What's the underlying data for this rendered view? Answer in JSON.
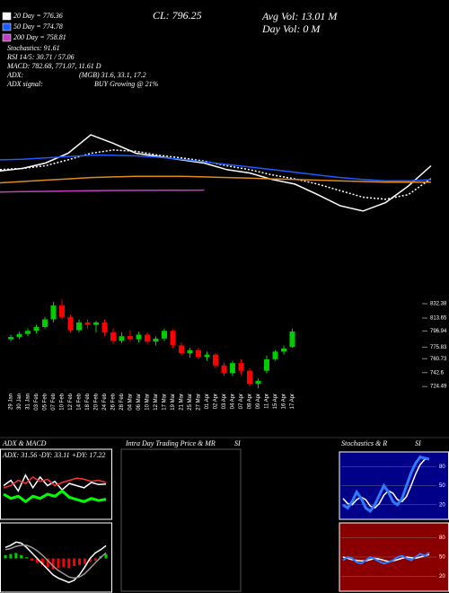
{
  "annotations": [
    "Stochastics: 91.61",
    "RSI 14/5: 30.71 / 57.06",
    "MACD: 782.68, 771.07, 11.61 D",
    "ADX:",
    "ADX signal:",
    "(MGB) 31.6, 33.1, 17.2",
    "BUY Growing @ 21%"
  ],
  "close_label": "CL: 796.25",
  "avg_volume": "Avg Vol: 13.01 M",
  "day_volume": "Day Vol: 0 M",
  "intraday": {
    "title": "Intra Day Trading Price & MR",
    "subtitle": "SI"
  },
  "chart_data": [
    {
      "type": "line",
      "ylim": [
        720,
        850
      ],
      "series": [
        {
          "color": "#ffffff",
          "values": [
            788,
            792,
            800,
            815,
            843,
            830,
            815,
            810,
            805,
            800,
            790,
            785,
            775,
            768,
            752,
            735,
            727,
            740,
            765,
            796
          ]
        },
        {
          "name": "20 Day = 776.36",
          "color": "#ffffff",
          "style": "dotted",
          "values": [
            790,
            792,
            796,
            805,
            815,
            820,
            818,
            812,
            808,
            803,
            796,
            790,
            782,
            776,
            768,
            758,
            748,
            745,
            752,
            776.36
          ]
        },
        {
          "name": "50 Day = 774.78",
          "color": "#1e5bff",
          "values": [
            805,
            806,
            808,
            810,
            812,
            812,
            811,
            809,
            806,
            802,
            798,
            794,
            790,
            786,
            782,
            778,
            775,
            773,
            773,
            774.78
          ]
        },
        {
          "color": "#e08a1e",
          "values": [
            770,
            772,
            774,
            776,
            778,
            779,
            780,
            780,
            780,
            779,
            778,
            777,
            776,
            775,
            774,
            773,
            772,
            771,
            771,
            771
          ]
        },
        {
          "name": "200 Day = 758.81",
          "color": "#c040c0",
          "values": [
            756,
            756.5,
            757,
            757.5,
            758,
            758.3,
            758.5,
            758.6,
            758.7,
            758.81,
            null,
            null,
            null,
            null,
            null,
            null,
            null,
            null,
            null,
            null
          ]
        }
      ]
    },
    {
      "type": "candlestick",
      "ylim": [
        720,
        850
      ],
      "yticks": [
        832.38,
        813.65,
        796.94,
        775.83,
        760.73,
        742.6,
        724.49
      ],
      "up_color": "#00cc00",
      "down_color": "#ff0000",
      "categories": [
        "29 Jan",
        "30 Jan",
        "31 Jan",
        "03 Feb",
        "05 Feb",
        "07 Feb",
        "10 Feb",
        "12 Feb",
        "14 Feb",
        "18 Feb",
        "20 Feb",
        "24 Feb",
        "26 Feb",
        "28 Feb",
        "04 Mar",
        "06 Mar",
        "10 Mar",
        "12 Mar",
        "17 Mar",
        "19 Mar",
        "21 Mar",
        "25 Mar",
        "27 Mar",
        "01 Apr",
        "02 Apr",
        "03 Apr",
        "04 Apr",
        "07 Apr",
        "08 Apr",
        "09 Apr",
        "11 Apr",
        "15 Apr",
        "16 Apr",
        "17 Apr"
      ],
      "open": [
        786,
        789,
        793,
        797,
        802,
        812,
        830,
        815,
        798,
        808,
        805,
        808,
        795,
        784,
        790,
        786,
        792,
        783,
        787,
        797,
        778,
        768,
        772,
        763,
        766,
        752,
        742,
        755,
        745,
        728,
        745,
        760,
        770,
        776
      ],
      "high": [
        792,
        796,
        800,
        805,
        815,
        835,
        838,
        818,
        812,
        812,
        810,
        812,
        800,
        795,
        798,
        796,
        795,
        790,
        800,
        799,
        782,
        775,
        775,
        770,
        768,
        756,
        758,
        760,
        748,
        735,
        765,
        772,
        778,
        800
      ],
      "low": [
        783,
        786,
        790,
        794,
        800,
        808,
        812,
        795,
        795,
        800,
        795,
        790,
        780,
        781,
        783,
        782,
        780,
        778,
        784,
        775,
        765,
        762,
        760,
        758,
        748,
        738,
        738,
        740,
        725,
        722,
        742,
        758,
        766,
        775
      ],
      "close": [
        789,
        793,
        797,
        802,
        812,
        830,
        815,
        798,
        808,
        805,
        808,
        795,
        784,
        790,
        786,
        792,
        783,
        787,
        797,
        778,
        768,
        772,
        763,
        766,
        752,
        742,
        755,
        745,
        728,
        732,
        760,
        770,
        774,
        796.25
      ]
    },
    {
      "type": "line",
      "title": "ADX & MACD",
      "subtitle": "ADX: 31.56  -DY: 33.11  +DY: 17.22",
      "ylim": [
        0,
        60
      ],
      "series": [
        {
          "color": "#ffffff",
          "values": [
            30,
            35,
            25,
            40,
            28,
            38,
            30,
            34,
            26,
            32,
            30,
            28,
            33,
            31,
            31.56
          ]
        },
        {
          "color": "#ff3030",
          "values": [
            28,
            30,
            35,
            32,
            38,
            34,
            36,
            30,
            33,
            35,
            37,
            36,
            34,
            35,
            33.11
          ]
        },
        {
          "color": "#00ff00",
          "width": 3,
          "values": [
            22,
            18,
            20,
            15,
            20,
            18,
            22,
            20,
            25,
            19,
            17,
            15,
            18,
            16,
            17.22
          ]
        }
      ]
    },
    {
      "type": "bar",
      "ylim": [
        -30,
        30
      ],
      "up_color": "#00cc00",
      "down_color": "#ff0000",
      "values": [
        3,
        4,
        5,
        3,
        1,
        -2,
        -4,
        -6,
        -8,
        -10,
        -9,
        -8,
        -9,
        -7,
        -6,
        -5,
        -3,
        -2,
        2,
        4
      ],
      "series": [
        {
          "color": "#ffffff",
          "values": [
            10,
            12,
            15,
            14,
            10,
            5,
            0,
            -5,
            -10,
            -15,
            -18,
            -20,
            -22,
            -20,
            -15,
            -8,
            0,
            5,
            8,
            11.61
          ]
        },
        {
          "color": "#999999",
          "values": [
            8,
            9,
            11,
            12,
            12,
            10,
            7,
            3,
            -2,
            -7,
            -11,
            -14,
            -17,
            -18,
            -17,
            -14,
            -9,
            -4,
            1,
            5
          ]
        }
      ]
    },
    {
      "type": "line",
      "title": "Stochastics & R",
      "subtitle": "SI",
      "ylim": [
        0,
        100
      ],
      "yticks": [
        20,
        50,
        80
      ],
      "background": "#000088",
      "series": [
        {
          "color": "#ffffff",
          "values": [
            30,
            22,
            20,
            28,
            32,
            28,
            18,
            15,
            22,
            35,
            42,
            38,
            28,
            25,
            33,
            50,
            68,
            83,
            91,
            92
          ]
        },
        {
          "color": "#2f7bff",
          "width": 3,
          "values": [
            20,
            15,
            25,
            40,
            30,
            15,
            10,
            20,
            35,
            50,
            40,
            25,
            20,
            30,
            50,
            70,
            85,
            95,
            93,
            91.61
          ]
        }
      ]
    },
    {
      "type": "line",
      "ylim": [
        0,
        100
      ],
      "yticks": [
        20,
        50,
        80
      ],
      "background": "#8a0000",
      "series": [
        {
          "color": "#ffffff",
          "values": [
            50,
            48,
            46,
            45,
            44,
            44,
            46,
            48,
            47,
            45,
            43,
            44,
            46,
            48,
            50,
            49,
            48,
            50,
            52,
            54
          ]
        },
        {
          "color": "#2f7bff",
          "width": 2,
          "values": [
            45,
            50,
            48,
            42,
            40,
            45,
            50,
            47,
            43,
            40,
            42,
            45,
            50,
            52,
            48,
            45,
            50,
            55,
            52,
            57.06
          ]
        }
      ]
    }
  ]
}
